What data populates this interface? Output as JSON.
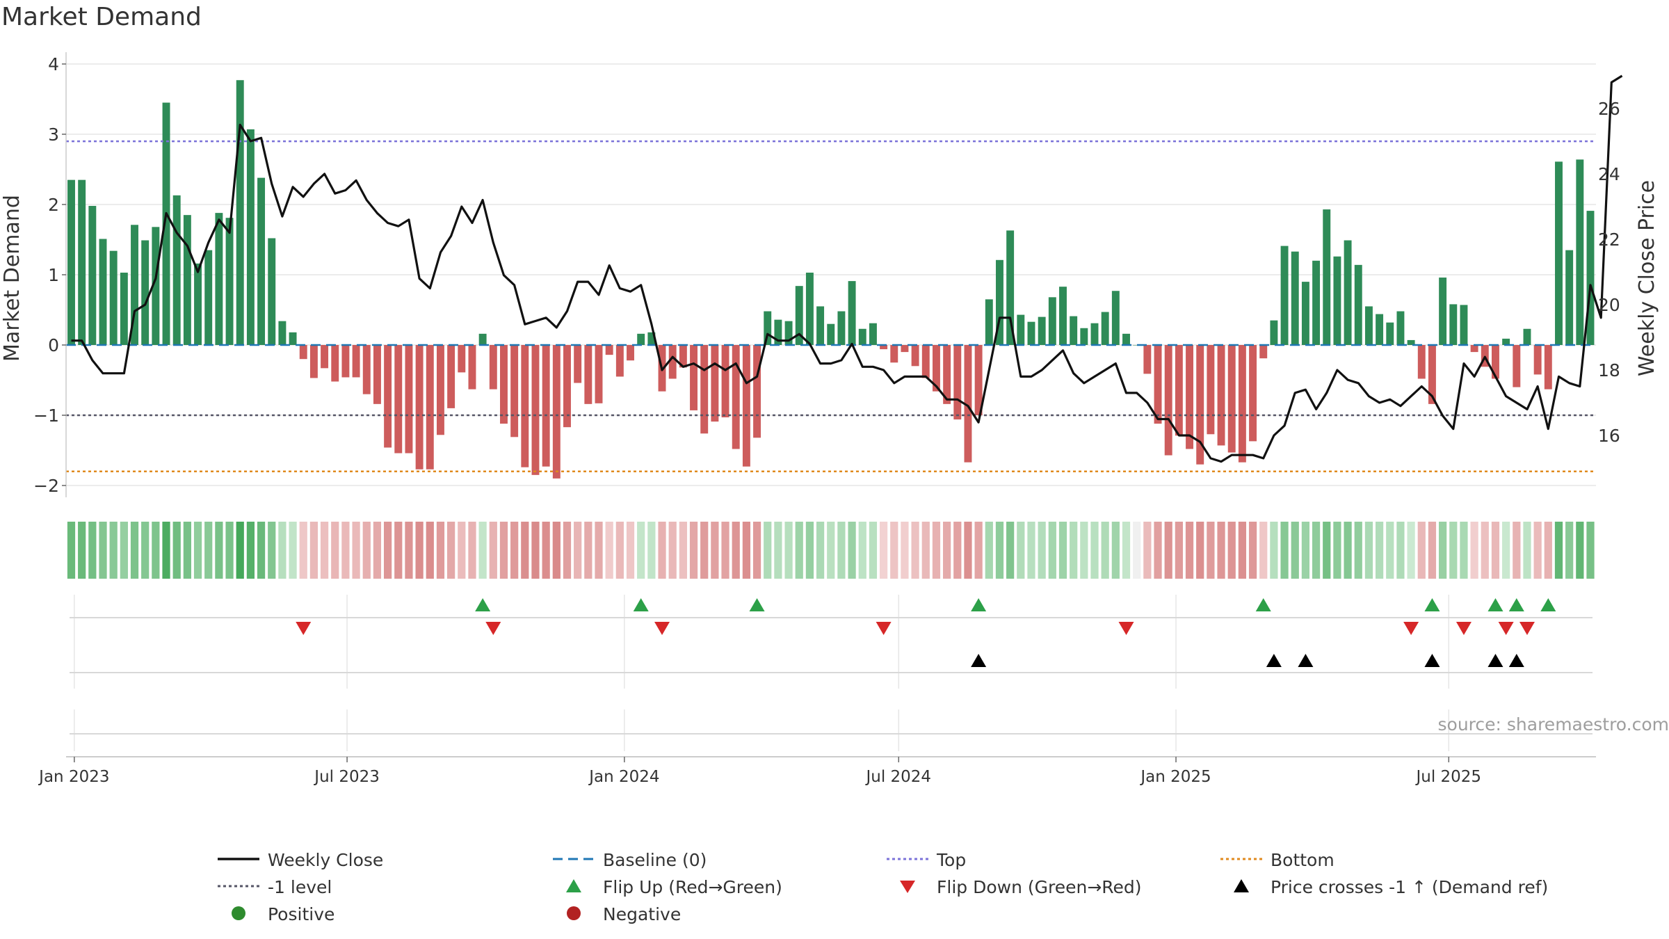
{
  "title": "Market Demand",
  "source": "source: sharemaestro.com",
  "chart_data": {
    "type": "bar",
    "title": "Market Demand",
    "ylabel": "Market Demand",
    "y2label": "Weekly Close Price",
    "ylim": [
      -2.2,
      4.1
    ],
    "y2lim": [
      14.5,
      27.2
    ],
    "yticks": [
      -2,
      -1,
      0,
      1,
      2,
      3,
      4
    ],
    "y2ticks": [
      16,
      18,
      20,
      22,
      24,
      26
    ],
    "ytick_labels": [
      "−2",
      "−1",
      "0",
      "1",
      "2",
      "3",
      "4"
    ],
    "y2tick_labels": [
      "16",
      "18",
      "20",
      "22",
      "24",
      "26"
    ],
    "x_start": "2022-12-30",
    "period_days": 7,
    "xticks": [
      {
        "date": "2023-01-01",
        "label": "Jan 2023"
      },
      {
        "date": "2023-07-01",
        "label": "Jul 2023"
      },
      {
        "date": "2024-01-01",
        "label": "Jan 2024"
      },
      {
        "date": "2024-07-01",
        "label": "Jul 2024"
      },
      {
        "date": "2025-01-01",
        "label": "Jan 2025"
      },
      {
        "date": "2025-07-01",
        "label": "Jul 2025"
      }
    ],
    "demand": [
      2.35,
      2.35,
      1.98,
      1.51,
      1.34,
      1.03,
      1.71,
      1.49,
      1.68,
      3.45,
      2.13,
      1.85,
      1.16,
      1.35,
      1.88,
      1.81,
      3.77,
      3.07,
      2.38,
      1.52,
      0.34,
      0.18,
      -0.2,
      -0.47,
      -0.33,
      -0.52,
      -0.46,
      -0.46,
      -0.7,
      -0.84,
      -1.46,
      -1.54,
      -1.54,
      -1.77,
      -1.77,
      -1.28,
      -0.9,
      -0.39,
      -0.63,
      0.16,
      -0.63,
      -1.12,
      -1.31,
      -1.74,
      -1.85,
      -1.73,
      -1.9,
      -1.17,
      -0.54,
      -0.84,
      -0.83,
      -0.14,
      -0.45,
      -0.22,
      0.16,
      0.18,
      -0.66,
      -0.48,
      -0.32,
      -0.93,
      -1.26,
      -1.09,
      -1.03,
      -1.48,
      -1.73,
      -1.32,
      0.48,
      0.36,
      0.34,
      0.84,
      1.03,
      0.55,
      0.3,
      0.48,
      0.91,
      0.23,
      0.31,
      -0.06,
      -0.25,
      -0.1,
      -0.3,
      -0.47,
      -0.66,
      -0.84,
      -1.06,
      -1.67,
      -1.0,
      0.65,
      1.21,
      1.63,
      0.43,
      0.33,
      0.4,
      0.68,
      0.83,
      0.41,
      0.24,
      0.31,
      0.47,
      0.77,
      0.16,
      0.0,
      -0.41,
      -1.12,
      -1.57,
      -1.29,
      -1.48,
      -1.7,
      -1.27,
      -1.43,
      -1.53,
      -1.67,
      -1.37,
      -0.19,
      0.35,
      1.41,
      1.33,
      0.9,
      1.2,
      1.93,
      1.26,
      1.49,
      1.14,
      0.55,
      0.44,
      0.32,
      0.48,
      0.07,
      -0.48,
      -0.84,
      0.96,
      0.58,
      0.57,
      -0.1,
      -0.31,
      -0.48,
      0.09,
      -0.6,
      0.23,
      -0.42,
      -0.63,
      2.61,
      1.35,
      2.64,
      1.91
    ],
    "weekly_close": [
      18.9,
      18.9,
      18.3,
      17.9,
      17.9,
      17.9,
      19.8,
      20.0,
      20.8,
      22.8,
      22.2,
      21.8,
      21.0,
      21.9,
      22.6,
      22.2,
      25.5,
      25.0,
      25.1,
      23.7,
      22.7,
      23.6,
      23.3,
      23.7,
      24.0,
      23.4,
      23.5,
      23.8,
      23.2,
      22.8,
      22.5,
      22.4,
      22.6,
      20.8,
      20.5,
      21.6,
      22.1,
      23.0,
      22.5,
      23.2,
      21.9,
      20.9,
      20.6,
      19.4,
      19.5,
      19.6,
      19.3,
      19.8,
      20.7,
      20.7,
      20.3,
      21.2,
      20.5,
      20.4,
      20.6,
      19.4,
      18.0,
      18.4,
      18.1,
      18.2,
      18.0,
      18.2,
      18.0,
      18.2,
      17.6,
      17.8,
      19.1,
      18.9,
      18.9,
      19.1,
      18.8,
      18.2,
      18.2,
      18.3,
      18.8,
      18.1,
      18.1,
      18.0,
      17.6,
      17.8,
      17.8,
      17.8,
      17.5,
      17.1,
      17.1,
      16.9,
      16.4,
      18.0,
      19.6,
      19.6,
      17.8,
      17.8,
      18.0,
      18.3,
      18.6,
      17.9,
      17.6,
      17.8,
      18.0,
      18.2,
      17.3,
      17.3,
      17.0,
      16.5,
      16.5,
      16.0,
      16.0,
      15.8,
      15.3,
      15.2,
      15.4,
      15.4,
      15.4,
      15.3,
      16.0,
      16.3,
      17.3,
      17.4,
      16.8,
      17.3,
      18.0,
      17.7,
      17.6,
      17.2,
      17.0,
      17.1,
      16.9,
      17.2,
      17.5,
      17.2,
      16.6,
      16.2,
      18.2,
      17.8,
      18.4,
      17.8,
      17.2,
      17.0,
      16.8,
      17.5,
      16.2,
      17.8,
      17.6,
      17.5,
      20.6,
      19.6,
      26.8,
      27.0
    ],
    "levels": {
      "baseline": 0,
      "top": 2.9,
      "minus_one": -1,
      "bottom": -1.8
    },
    "flip_up_indices": [
      39,
      54,
      65,
      86,
      113,
      129,
      135,
      137,
      140
    ],
    "flip_down_indices": [
      22,
      40,
      56,
      77,
      100,
      127,
      132,
      136,
      138
    ],
    "price_cross_indices": [
      86,
      114,
      117,
      129,
      135,
      137
    ],
    "legend": [
      {
        "label": "Weekly Close",
        "marker": "line-solid",
        "color": "#111111"
      },
      {
        "label": "Baseline (0)",
        "marker": "line-dashed",
        "color": "#1f77b4"
      },
      {
        "label": "Top",
        "marker": "line-dotted",
        "color": "#7b72d9"
      },
      {
        "label": "Bottom",
        "marker": "line-dotted",
        "color": "#e08a1e"
      },
      {
        "label": "-1 level",
        "marker": "line-dotted",
        "color": "#555566"
      },
      {
        "label": "Flip Up (Red→Green)",
        "marker": "triangle-up",
        "color": "#2ca048"
      },
      {
        "label": "Flip Down (Green→Red)",
        "marker": "triangle-down",
        "color": "#d62728"
      },
      {
        "label": "Price crosses -1 ↑ (Demand ref)",
        "marker": "triangle-up",
        "color": "#000000"
      },
      {
        "label": "Positive",
        "marker": "circle",
        "color": "#2e8b2e"
      },
      {
        "label": "Negative",
        "marker": "circle",
        "color": "#b22222"
      }
    ]
  },
  "colors": {
    "positive_bar": "#2e8b57",
    "negative_bar": "#cd5c5c",
    "price_line": "#111111",
    "baseline": "#1f77b4",
    "top": "#7b72d9",
    "minus_one": "#555566",
    "bottom": "#e08a1e",
    "grid": "#e6e6e6"
  }
}
